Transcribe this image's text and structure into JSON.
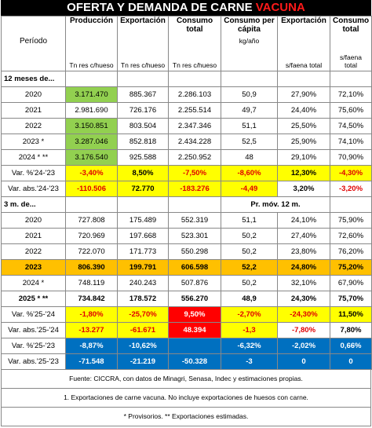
{
  "title": {
    "main": "OFERTA Y DEMANDA DE CARNE",
    "highlight": "VACUNA"
  },
  "header": {
    "columns": [
      "Producción",
      "Exportación",
      "Consumo total",
      "Consumo per cápita",
      "Exportación",
      "Consumo total"
    ],
    "period_label": "Período",
    "units": [
      "Tn res c/hueso",
      "Tn res c/hueso",
      "Tn res c/hueso",
      "kg/año",
      "s/faena total",
      "s/faena total"
    ]
  },
  "sections": [
    {
      "label": "12 meses de...",
      "rows": [
        [
          "2020",
          "3.171.470",
          "885.367",
          "2.286.103",
          "50,9",
          "27,90%",
          "72,10%"
        ],
        [
          "2021",
          "2.981.690",
          "726.176",
          "2.255.514",
          "49,7",
          "24,40%",
          "75,60%"
        ],
        [
          "2022",
          "3.150.851",
          "803.504",
          "2.347.346",
          "51,1",
          "25,50%",
          "74,50%"
        ],
        [
          "2023 *",
          "3.287.046",
          "852.818",
          "2.434.228",
          "52,5",
          "25,90%",
          "74,10%"
        ],
        [
          "2024 * **",
          "3.176.540",
          "925.588",
          "2.250.952",
          "48",
          "29,10%",
          "70,90%"
        ],
        [
          "Var. %'24-'23",
          "-3,40%",
          "8,50%",
          "-7,50%",
          "-8,60%",
          "12,30%",
          "-4,30%"
        ],
        [
          "Var. abs.'24-'23",
          "-110.506",
          "72.770",
          "-183.276",
          "-4,49",
          "3,20%",
          "-3,20%"
        ]
      ]
    },
    {
      "label": "3 m. de...",
      "note": "Pr. móv. 12 m.",
      "rows": [
        [
          "2020",
          "727.808",
          "175.489",
          "552.319",
          "51,1",
          "24,10%",
          "75,90%"
        ],
        [
          "2021",
          "720.969",
          "197.668",
          "523.301",
          "50,2",
          "27,40%",
          "72,60%"
        ],
        [
          "2022",
          "722.070",
          "171.773",
          "550.298",
          "50,2",
          "23,80%",
          "76,20%"
        ],
        [
          "2023",
          "806.390",
          "199.791",
          "606.598",
          "52,2",
          "24,80%",
          "75,20%"
        ],
        [
          "2024 *",
          "748.119",
          "240.243",
          "507.876",
          "50,2",
          "32,10%",
          "67,90%"
        ],
        [
          "2025 * **",
          "734.842",
          "178.572",
          "556.270",
          "48,9",
          "24,30%",
          "75,70%"
        ],
        [
          "Var. %'25-'24",
          "-1,80%",
          "-25,70%",
          "9,50%",
          "-2,70%",
          "-24,30%",
          "11,50%"
        ],
        [
          "Var. abs.'25-'24",
          "-13.277",
          "-61.671",
          "48.394",
          "-1,3",
          "-7,80%",
          "7,80%"
        ],
        [
          "Var. %'25-'23",
          "-8,87%",
          "-10,62%",
          null,
          "-6,32%",
          "-2,02%",
          "0,66%"
        ],
        [
          "Var. abs.'25-'23",
          "-71.548",
          "-21.219",
          "-50.328",
          "-3",
          "0",
          "0"
        ]
      ]
    }
  ],
  "footnotes": [
    "Fuente: CICCRA, con datos de Minagri, Senasa, Indec y estimaciones propias.",
    "1. Exportaciones de carne vacuna. No incluye exportaciones de huesos con carne.",
    "* Provisorios. ** Exportaciones estimadas."
  ]
}
